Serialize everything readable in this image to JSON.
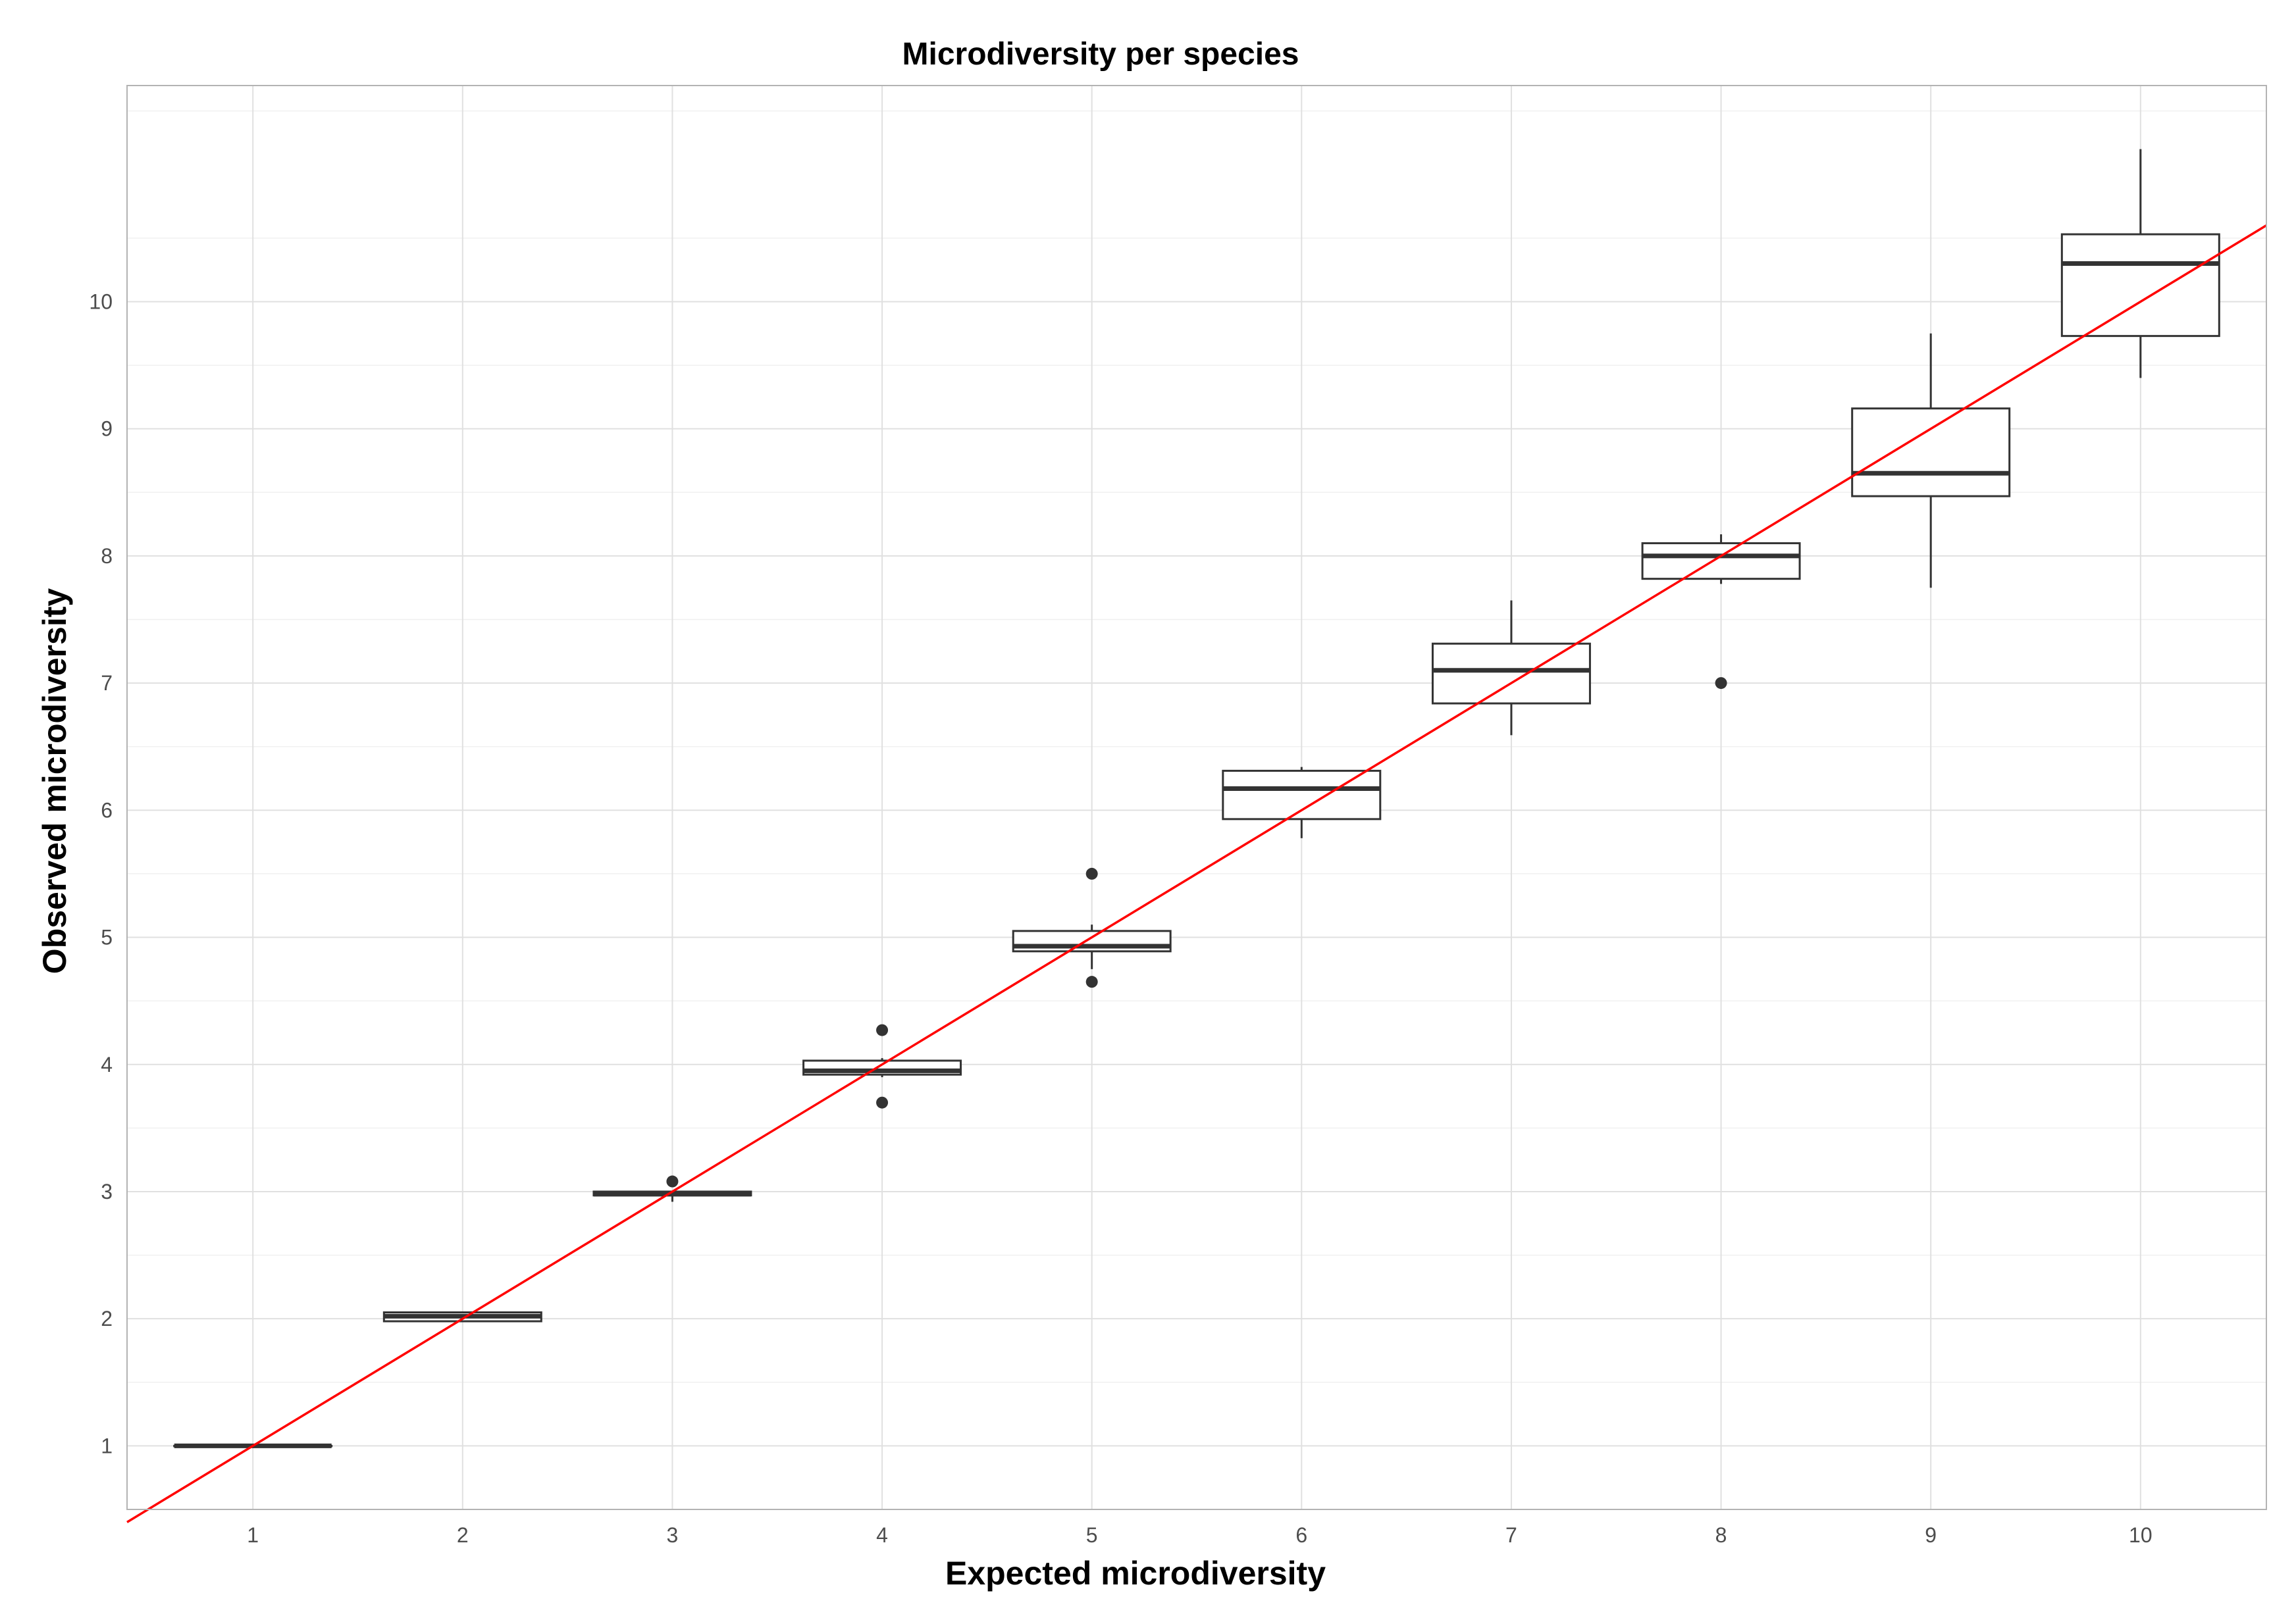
{
  "chart_data": {
    "type": "box",
    "title": "Microdiversity per species",
    "xlabel": "Expected microdiversity",
    "ylabel": "Observed microdiversity",
    "xlim": [
      0.4,
      10.6
    ],
    "ylim": [
      0.5,
      11.7
    ],
    "x_ticks": [
      "1",
      "2",
      "3",
      "4",
      "5",
      "6",
      "7",
      "8",
      "9",
      "10"
    ],
    "y_ticks": [
      "1",
      "2",
      "3",
      "4",
      "5",
      "6",
      "7",
      "8",
      "9",
      "10"
    ],
    "grid": true,
    "reference_line": {
      "slope": 1,
      "intercept": 0,
      "color": "#ff0000"
    },
    "boxes": [
      {
        "x": 1,
        "lower_whisker": 1.0,
        "q1": 1.0,
        "median": 1.0,
        "q3": 1.0,
        "upper_whisker": 1.0,
        "outliers": []
      },
      {
        "x": 2,
        "lower_whisker": 1.98,
        "q1": 1.98,
        "median": 2.02,
        "q3": 2.05,
        "upper_whisker": 2.05,
        "outliers": []
      },
      {
        "x": 3,
        "lower_whisker": 2.92,
        "q1": 2.97,
        "median": 2.98,
        "q3": 3.0,
        "upper_whisker": 3.0,
        "outliers": [
          3.08
        ]
      },
      {
        "x": 4,
        "lower_whisker": 3.9,
        "q1": 3.92,
        "median": 3.95,
        "q3": 4.03,
        "upper_whisker": 4.05,
        "outliers": [
          4.27,
          3.7
        ]
      },
      {
        "x": 5,
        "lower_whisker": 4.75,
        "q1": 4.89,
        "median": 4.93,
        "q3": 5.05,
        "upper_whisker": 5.1,
        "outliers": [
          5.5,
          4.65
        ]
      },
      {
        "x": 6,
        "lower_whisker": 5.78,
        "q1": 5.93,
        "median": 6.17,
        "q3": 6.31,
        "upper_whisker": 6.34,
        "outliers": []
      },
      {
        "x": 7,
        "lower_whisker": 6.59,
        "q1": 6.84,
        "median": 7.1,
        "q3": 7.31,
        "upper_whisker": 7.65,
        "outliers": []
      },
      {
        "x": 8,
        "lower_whisker": 7.78,
        "q1": 7.82,
        "median": 8.0,
        "q3": 8.1,
        "upper_whisker": 8.17,
        "outliers": [
          7.0
        ]
      },
      {
        "x": 9,
        "lower_whisker": 7.75,
        "q1": 8.47,
        "median": 8.65,
        "q3": 9.16,
        "upper_whisker": 9.75,
        "outliers": []
      },
      {
        "x": 10,
        "lower_whisker": 9.4,
        "q1": 9.73,
        "median": 10.3,
        "q3": 10.53,
        "upper_whisker": 11.2,
        "outliers": []
      }
    ]
  }
}
